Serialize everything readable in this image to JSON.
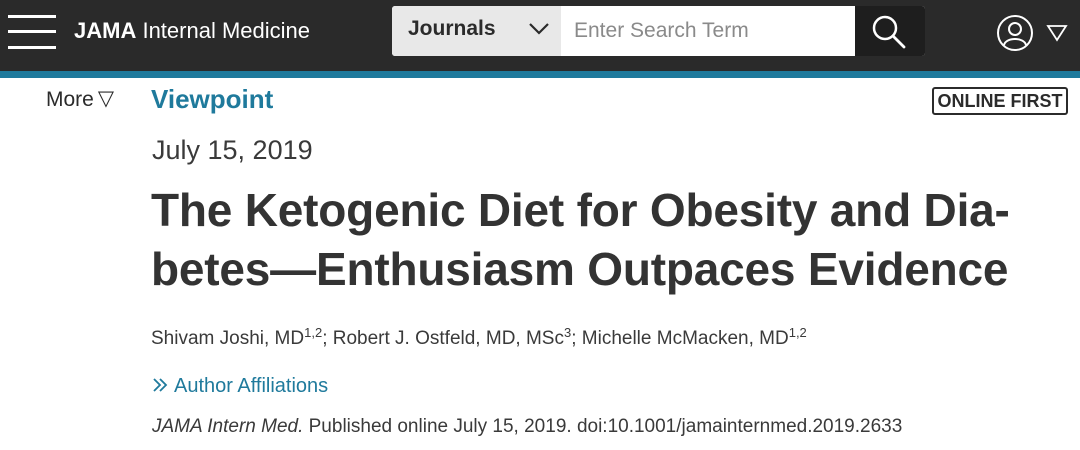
{
  "header": {
    "brand_strong": "JAMA",
    "brand_rest": " Internal Medicine",
    "journals_label": "Journals",
    "search_placeholder": "Enter Search Term",
    "icons": [
      "hamburger-menu-icon",
      "chevron-down-icon",
      "search-icon",
      "user-icon",
      "caret-down-icon"
    ],
    "colors": {
      "bar": "#2a2a2a",
      "accent": "#1f7a9c"
    }
  },
  "nav": {
    "more_label": "More",
    "more_caret": "▽"
  },
  "article": {
    "category": "Viewpoint",
    "badge": "ONLINE FIRST",
    "date": "July 15, 2019",
    "title_line1": "The Ketogenic Diet for Obesity and Dia-",
    "title_line2": "betes—Enthusiasm Outpaces Evidence",
    "authors": [
      {
        "name": "Shivam Joshi, MD",
        "sup": "1,2",
        "sep": "; "
      },
      {
        "name": "Robert J. Ostfeld, MD, MSc",
        "sup": "3",
        "sep": "; "
      },
      {
        "name": "Michelle McMacken, MD",
        "sup": "1,2",
        "sep": ""
      }
    ],
    "affiliations_label": "Author Affiliations",
    "citation_journal": "JAMA Intern Med.",
    "citation_rest": " Published online July 15, 2019. doi:10.1001/jamainternmed.2019.2633"
  }
}
